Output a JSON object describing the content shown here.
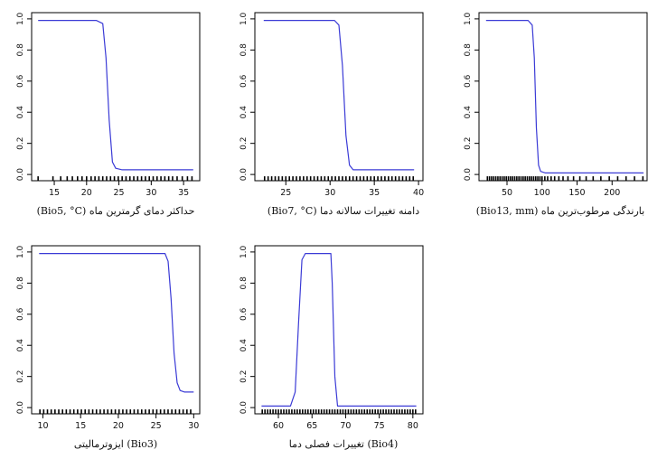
{
  "colors": {
    "curve": "#3b3bd6",
    "axis": "#000000",
    "rug": "#000000"
  },
  "chart_data": [
    {
      "type": "line",
      "xlabel": "(Bio5, °C) حداکثر دمای گرمترین ماه",
      "xticks": [
        15,
        20,
        25,
        30,
        35
      ],
      "xlim": [
        11.5,
        37.5
      ],
      "yticks": [
        "0.0",
        "0.2",
        "0.4",
        "0.6",
        "0.8",
        "1.0"
      ],
      "ylim": [
        -0.04,
        1.04
      ],
      "x": [
        12.5,
        21.5,
        22.5,
        23.0,
        23.5,
        24.0,
        24.5,
        25.5,
        36.5
      ],
      "y": [
        0.99,
        0.99,
        0.97,
        0.75,
        0.35,
        0.08,
        0.04,
        0.03,
        0.03
      ],
      "rug": [
        12.5,
        14.8,
        16.0,
        17.0,
        17.8,
        18.6,
        19.3,
        20.0,
        20.7,
        21.3,
        21.9,
        22.5,
        23.1,
        23.7,
        24.3,
        24.9,
        25.5,
        26.1,
        26.7,
        27.3,
        27.9,
        28.5,
        29.1,
        29.7,
        30.3,
        30.9,
        31.5,
        32.1,
        32.7,
        33.3,
        34.0,
        34.8,
        35.6,
        36.3
      ]
    },
    {
      "type": "line",
      "xlabel": "(Bio7, °C) دامنه تغییرات سالانه دما",
      "xticks": [
        25,
        30,
        35,
        40
      ],
      "xlim": [
        21.5,
        40.5
      ],
      "yticks": [
        "0.0",
        "0.2",
        "0.4",
        "0.6",
        "0.8",
        "1.0"
      ],
      "ylim": [
        -0.04,
        1.04
      ],
      "x": [
        22.5,
        30.5,
        31.0,
        31.4,
        31.8,
        32.2,
        32.6,
        33.5,
        39.5
      ],
      "y": [
        0.99,
        0.99,
        0.96,
        0.7,
        0.25,
        0.06,
        0.03,
        0.03,
        0.03
      ],
      "rug": [
        22.6,
        23.0,
        23.4,
        23.8,
        24.2,
        24.6,
        25.0,
        25.4,
        25.8,
        26.2,
        26.6,
        27.0,
        27.4,
        27.8,
        28.2,
        28.6,
        29.0,
        29.4,
        29.8,
        30.2,
        30.6,
        31.0,
        31.4,
        31.8,
        32.2,
        32.6,
        33.0,
        33.4,
        33.8,
        34.2,
        34.6,
        35.0,
        35.4,
        35.8,
        36.2,
        36.6,
        37.0,
        37.4,
        37.8,
        38.2,
        38.6,
        39.0,
        39.4
      ]
    },
    {
      "type": "line",
      "xlabel": "(Bio13, mm) بارندگی مرطوب‌ترین ماه",
      "xticks": [
        50,
        100,
        150,
        200
      ],
      "xlim": [
        10,
        250
      ],
      "yticks": [
        "0.0",
        "0.2",
        "0.4",
        "0.6",
        "0.8",
        "1.0"
      ],
      "ylim": [
        -0.04,
        1.04
      ],
      "x": [
        20,
        80,
        86,
        89,
        92,
        95,
        98,
        105,
        245
      ],
      "y": [
        0.99,
        0.99,
        0.96,
        0.75,
        0.3,
        0.06,
        0.02,
        0.01,
        0.01
      ],
      "rug": [
        22,
        25,
        28,
        31,
        34,
        37,
        40,
        43,
        46,
        49,
        52,
        55,
        58,
        61,
        64,
        67,
        70,
        73,
        76,
        79,
        82,
        85,
        88,
        91,
        94,
        97,
        100,
        104,
        108,
        113,
        118,
        124,
        130,
        137,
        145,
        154,
        163,
        173,
        184,
        196,
        208,
        220,
        232,
        244
      ]
    },
    {
      "type": "line",
      "xlabel": "ایزوترمالیتی (Bio3)",
      "xticks": [
        10,
        15,
        20,
        25,
        30
      ],
      "xlim": [
        8.5,
        30.8
      ],
      "yticks": [
        "0.0",
        "0.2",
        "0.4",
        "0.6",
        "0.8",
        "1.0"
      ],
      "ylim": [
        -0.04,
        1.04
      ],
      "x": [
        9.5,
        26.2,
        26.6,
        27.0,
        27.4,
        27.8,
        28.2,
        28.8,
        30.0
      ],
      "y": [
        0.99,
        0.99,
        0.94,
        0.7,
        0.35,
        0.16,
        0.11,
        0.1,
        0.1
      ],
      "rug": [
        9.6,
        10.1,
        10.6,
        11.1,
        11.6,
        12.1,
        12.6,
        13.1,
        13.6,
        14.1,
        14.6,
        15.1,
        15.6,
        16.1,
        16.6,
        17.1,
        17.6,
        18.1,
        18.6,
        19.1,
        19.6,
        20.1,
        20.6,
        21.1,
        21.6,
        22.1,
        22.6,
        23.1,
        23.6,
        24.1,
        24.6,
        25.1,
        25.6,
        26.1,
        26.6,
        27.1,
        27.6,
        28.1,
        28.6,
        29.1,
        29.6
      ]
    },
    {
      "type": "line",
      "xlabel": "تغییرات فصلی دما (Bio4)",
      "xticks": [
        60,
        65,
        70,
        75,
        80
      ],
      "xlim": [
        56.5,
        81.5
      ],
      "yticks": [
        "0.0",
        "0.2",
        "0.4",
        "0.6",
        "0.8",
        "1.0"
      ],
      "ylim": [
        -0.04,
        1.04
      ],
      "x": [
        57.5,
        61.8,
        62.5,
        63.0,
        63.5,
        64.0,
        67.8,
        68.0,
        68.4,
        68.8,
        80.5
      ],
      "y": [
        0.01,
        0.01,
        0.1,
        0.55,
        0.95,
        0.99,
        0.99,
        0.8,
        0.2,
        0.01,
        0.01
      ],
      "rug": [
        57.6,
        58.0,
        58.4,
        58.8,
        59.2,
        59.6,
        60.0,
        60.4,
        60.8,
        61.2,
        61.6,
        62.0,
        62.4,
        62.8,
        63.2,
        63.6,
        64.0,
        64.4,
        64.8,
        65.2,
        65.6,
        66.0,
        66.4,
        66.8,
        67.2,
        67.6,
        68.0,
        68.4,
        68.8,
        69.2,
        69.6,
        70.0,
        70.4,
        70.8,
        71.2,
        71.6,
        72.0,
        72.4,
        72.8,
        73.2,
        73.6,
        74.0,
        74.4,
        74.8,
        75.2,
        75.6,
        76.0,
        76.4,
        76.8,
        77.2,
        77.6,
        78.0,
        78.4,
        78.8,
        79.2,
        79.6,
        80.0,
        80.4
      ]
    }
  ]
}
